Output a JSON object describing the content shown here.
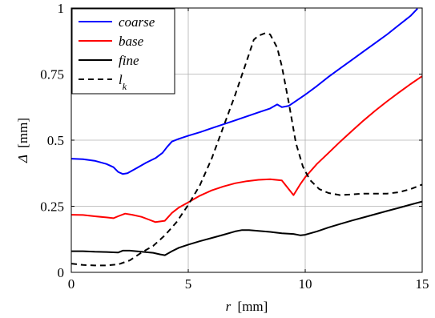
{
  "chart_data": {
    "type": "line",
    "xlabel_var": "r",
    "xlabel_unit": "[mm]",
    "ylabel_var": "Δ",
    "ylabel_unit": "[mm]",
    "xlim": [
      0,
      15
    ],
    "ylim": [
      0,
      1
    ],
    "xticks": [
      0,
      5,
      10,
      15
    ],
    "xtick_labels": [
      "0",
      "5",
      "10",
      "15"
    ],
    "yticks": [
      0,
      0.25,
      0.5,
      0.75,
      1
    ],
    "ytick_labels": [
      "0",
      "0.25",
      "0.5",
      "0.75",
      "1"
    ],
    "grid": true,
    "legend_position": "top-left",
    "series": [
      {
        "name": "coarse",
        "color": "#0000ff",
        "dash": "solid",
        "x": [
          0,
          0.5,
          1.0,
          1.5,
          1.8,
          2.0,
          2.2,
          2.4,
          2.8,
          3.2,
          3.6,
          3.9,
          4.1,
          4.3,
          4.6,
          5.0,
          5.5,
          6.0,
          6.5,
          7.0,
          7.5,
          8.0,
          8.5,
          8.8,
          9.0,
          9.3,
          9.6,
          10.0,
          10.5,
          11.0,
          11.5,
          12.0,
          12.5,
          13.0,
          13.5,
          14.0,
          14.5,
          14.8
        ],
        "y": [
          0.43,
          0.428,
          0.422,
          0.41,
          0.398,
          0.38,
          0.372,
          0.375,
          0.395,
          0.415,
          0.432,
          0.452,
          0.475,
          0.495,
          0.505,
          0.517,
          0.53,
          0.545,
          0.56,
          0.575,
          0.59,
          0.605,
          0.62,
          0.635,
          0.625,
          0.63,
          0.648,
          0.672,
          0.705,
          0.74,
          0.772,
          0.804,
          0.836,
          0.868,
          0.9,
          0.935,
          0.97,
          0.998
        ]
      },
      {
        "name": "base",
        "color": "#ff0000",
        "dash": "solid",
        "x": [
          0,
          0.5,
          1.0,
          1.5,
          1.8,
          2.0,
          2.3,
          2.6,
          3.0,
          3.3,
          3.6,
          4.0,
          4.3,
          4.6,
          5.0,
          5.5,
          6.0,
          6.5,
          7.0,
          7.5,
          8.0,
          8.5,
          9.0,
          9.5,
          9.8,
          10.0,
          10.5,
          11.0,
          11.5,
          12.0,
          12.5,
          13.0,
          13.5,
          14.0,
          14.5,
          15.0
        ],
        "y": [
          0.218,
          0.217,
          0.212,
          0.208,
          0.205,
          0.212,
          0.222,
          0.218,
          0.21,
          0.2,
          0.19,
          0.195,
          0.225,
          0.245,
          0.265,
          0.29,
          0.31,
          0.325,
          0.337,
          0.345,
          0.35,
          0.352,
          0.348,
          0.292,
          0.335,
          0.36,
          0.41,
          0.452,
          0.495,
          0.535,
          0.575,
          0.612,
          0.647,
          0.68,
          0.712,
          0.742
        ]
      },
      {
        "name": "fine",
        "color": "#000000",
        "dash": "solid",
        "x": [
          0,
          0.5,
          1.0,
          1.5,
          2.0,
          2.2,
          2.5,
          3.0,
          3.5,
          3.8,
          4.0,
          4.3,
          4.6,
          5.0,
          5.5,
          6.0,
          6.5,
          7.0,
          7.3,
          7.6,
          8.0,
          8.5,
          9.0,
          9.5,
          9.8,
          10.0,
          10.5,
          11.0,
          11.5,
          12.0,
          12.5,
          13.0,
          13.5,
          14.0,
          14.5,
          15.0
        ],
        "y": [
          0.08,
          0.08,
          0.078,
          0.077,
          0.075,
          0.082,
          0.082,
          0.078,
          0.074,
          0.068,
          0.065,
          0.08,
          0.093,
          0.105,
          0.118,
          0.13,
          0.142,
          0.155,
          0.16,
          0.16,
          0.157,
          0.153,
          0.148,
          0.145,
          0.14,
          0.142,
          0.155,
          0.17,
          0.183,
          0.196,
          0.208,
          0.22,
          0.232,
          0.244,
          0.256,
          0.268
        ]
      },
      {
        "name": "l_k",
        "color": "#000000",
        "dash": "dashed",
        "x": [
          0,
          0.5,
          1.0,
          1.5,
          2.0,
          2.5,
          3.0,
          3.5,
          4.0,
          4.5,
          5.0,
          5.5,
          6.0,
          6.5,
          7.0,
          7.5,
          7.8,
          8.0,
          8.3,
          8.5,
          8.8,
          9.0,
          9.3,
          9.6,
          9.9,
          10.2,
          10.6,
          11.0,
          11.5,
          12.0,
          12.5,
          13.0,
          13.5,
          14.0,
          14.5,
          15.0
        ],
        "y": [
          0.033,
          0.028,
          0.026,
          0.026,
          0.03,
          0.045,
          0.075,
          0.1,
          0.14,
          0.19,
          0.255,
          0.33,
          0.43,
          0.55,
          0.67,
          0.8,
          0.88,
          0.895,
          0.905,
          0.9,
          0.85,
          0.78,
          0.64,
          0.49,
          0.4,
          0.35,
          0.315,
          0.3,
          0.292,
          0.295,
          0.298,
          0.298,
          0.298,
          0.303,
          0.315,
          0.332
        ]
      }
    ]
  }
}
